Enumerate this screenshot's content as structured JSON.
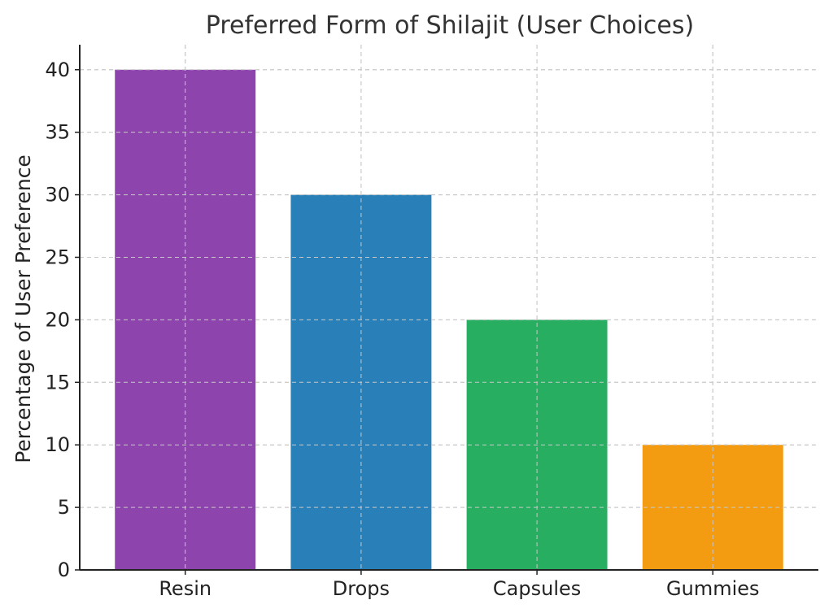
{
  "chart_data": {
    "type": "bar",
    "title": "Preferred Form of Shilajit (User Choices)",
    "xlabel": "",
    "ylabel": "Percentage of User Preference",
    "categories": [
      "Resin",
      "Drops",
      "Capsules",
      "Gummies"
    ],
    "values": [
      40,
      30,
      20,
      10
    ],
    "colors": [
      "#8e44ad",
      "#2980b9",
      "#27ae60",
      "#f39c12"
    ],
    "ylim": [
      0,
      42
    ],
    "yticks": [
      0,
      5,
      10,
      15,
      20,
      25,
      30,
      35,
      40
    ],
    "grid": true,
    "legend": "none"
  }
}
